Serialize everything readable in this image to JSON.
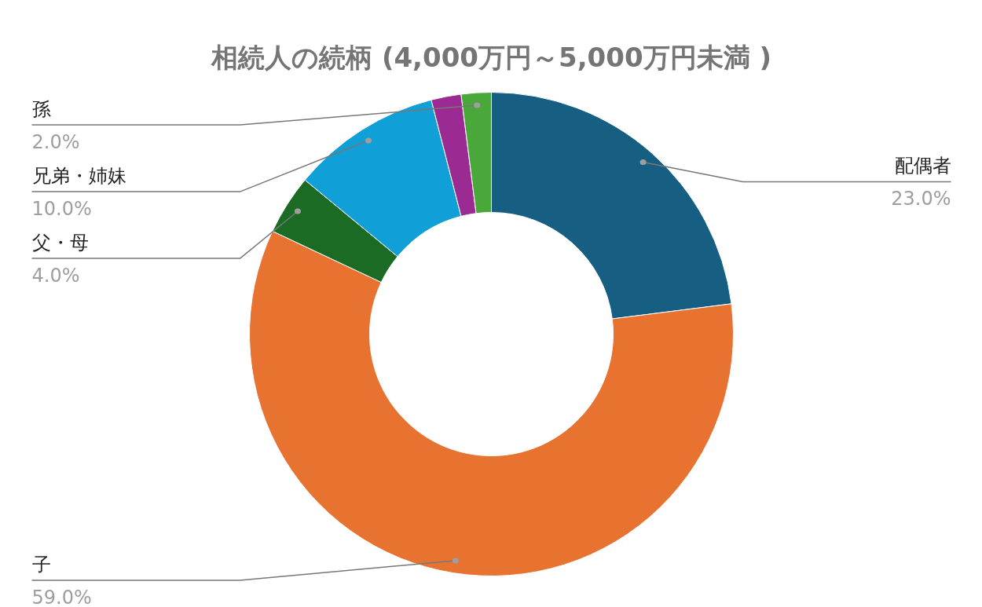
{
  "chart_data": {
    "type": "donut",
    "title": "相続人の続柄 (4,000万円～5,000万円未満 )",
    "categories": [
      "配偶者",
      "子",
      "父・母",
      "兄弟・姉妹",
      null,
      "孫"
    ],
    "values": [
      23,
      59,
      4,
      10,
      2,
      2
    ],
    "colors": [
      "#175f82",
      "#e87331",
      "#1c6b24",
      "#109fd6",
      "#9c2a93",
      "#4aa83a"
    ],
    "value_labels": [
      "23.0%",
      "59.0%",
      "4.0%",
      "10.0%",
      null,
      "2.0%"
    ],
    "legend": false
  }
}
